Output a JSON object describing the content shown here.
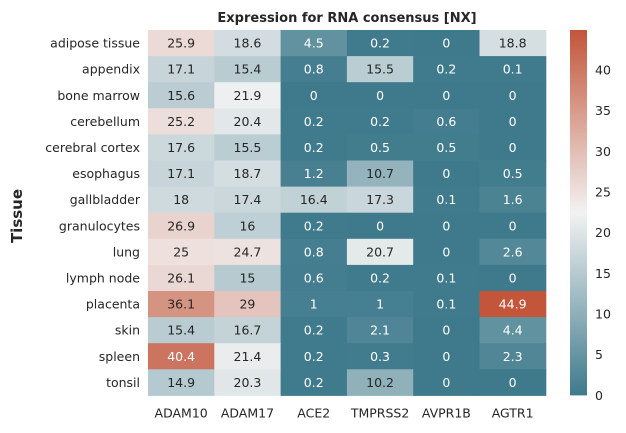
{
  "chart_data": {
    "type": "heatmap",
    "title": "Expression for RNA consensus [NX]",
    "ylabel": "Tissue",
    "xlabel": "",
    "columns": [
      "ADAM10",
      "ADAM17",
      "ACE2",
      "TMPRSS2",
      "AVPR1B",
      "AGTR1"
    ],
    "rows": [
      "adipose tissue",
      "appendix",
      "bone marrow",
      "cerebellum",
      "cerebral cortex",
      "esophagus",
      "gallbladder",
      "granulocytes",
      "lung",
      "lymph node",
      "placenta",
      "skin",
      "spleen",
      "tonsil"
    ],
    "values": [
      [
        25.9,
        18.6,
        4.5,
        0.2,
        0,
        18.8
      ],
      [
        17.1,
        15.4,
        0.8,
        15.5,
        0.2,
        0.1
      ],
      [
        15.6,
        21.9,
        0,
        0,
        0,
        0
      ],
      [
        25.2,
        20.4,
        0.2,
        0.2,
        0.6,
        0
      ],
      [
        17.6,
        15.5,
        0.2,
        0.5,
        0.5,
        0
      ],
      [
        17.1,
        18.7,
        1.2,
        10.7,
        0,
        0.5
      ],
      [
        18,
        17.4,
        16.4,
        17.3,
        0.1,
        1.6
      ],
      [
        26.9,
        16,
        0.2,
        0,
        0,
        0
      ],
      [
        25,
        24.7,
        0.8,
        20.7,
        0,
        2.6
      ],
      [
        26.1,
        15,
        0.6,
        0.2,
        0.1,
        0
      ],
      [
        36.1,
        29,
        1,
        1,
        0.1,
        44.9
      ],
      [
        15.4,
        16.7,
        0.2,
        2.1,
        0,
        4.4
      ],
      [
        40.4,
        21.4,
        0.2,
        0.3,
        0,
        2.3
      ],
      [
        14.9,
        20.3,
        0.2,
        10.2,
        0,
        0
      ]
    ],
    "vmin": 0,
    "vmax": 44.9,
    "colorbar_ticks": [
      0,
      5,
      10,
      15,
      20,
      25,
      30,
      35,
      40
    ],
    "colormap": {
      "low": "#3e7a8c",
      "mid": "#f2f2f2",
      "high": "#c3553a"
    }
  }
}
